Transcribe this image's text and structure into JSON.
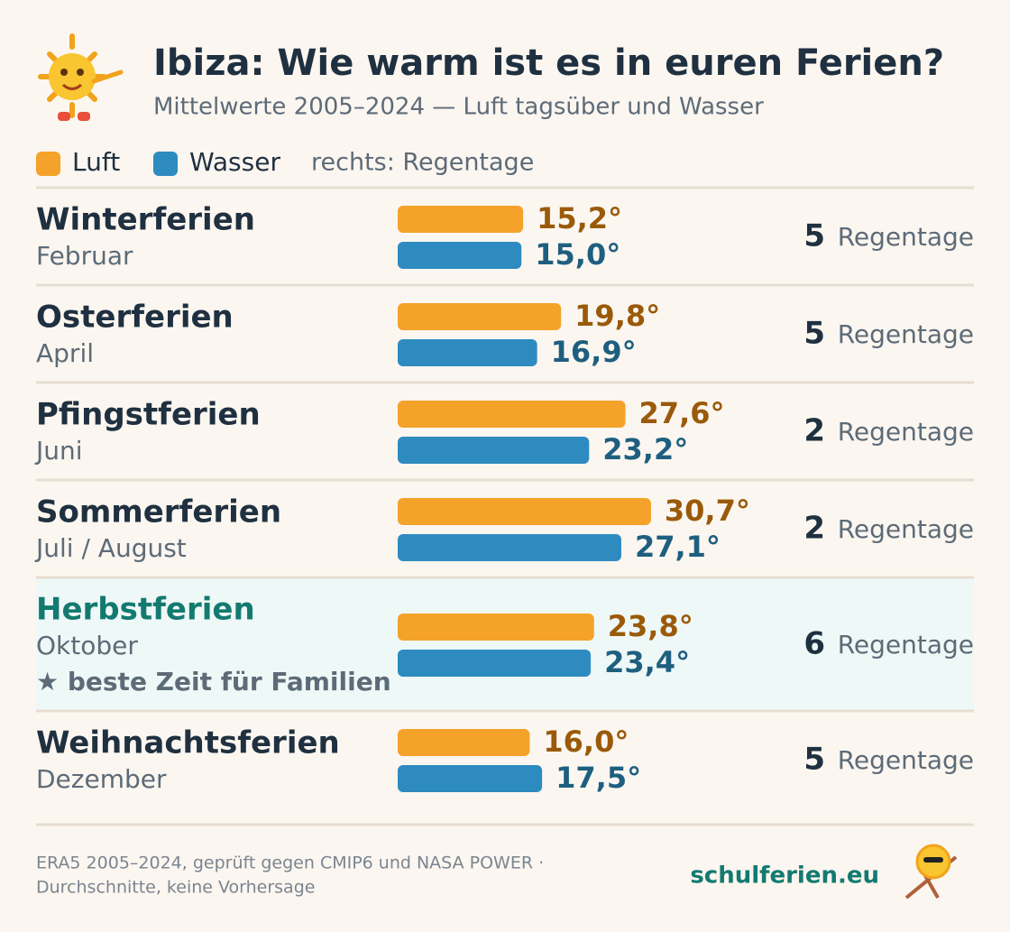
{
  "chart_data": {
    "type": "hbar",
    "title": "Ibiza: Wie warm ist es in euren Ferien?",
    "subtitle": "Mittelwerte 2005–2024 — Luft tagsüber und Wasser",
    "rain_note": "rechts: Regentage",
    "categories": [
      "Winterferien",
      "Osterferien",
      "Pfingstferien",
      "Sommerferien",
      "Herbstferien",
      "Weihnachtsferien"
    ],
    "category_sublabels": [
      "Februar",
      "April",
      "Juni",
      "Juli / August",
      "Oktober",
      "Dezember"
    ],
    "series": [
      {
        "name": "Luft",
        "color": "#f4a22a",
        "label_color": "#9a5a0a",
        "values": [
          15.2,
          19.8,
          27.6,
          30.7,
          23.8,
          16.0
        ],
        "value_labels": [
          "15,2°",
          "19,8°",
          "27,6°",
          "30,7°",
          "23,8°",
          "16,0°"
        ]
      },
      {
        "name": "Wasser",
        "color": "#2e8bc0",
        "label_color": "#1e5f80",
        "values": [
          15.0,
          16.9,
          23.2,
          27.1,
          23.4,
          17.5
        ],
        "value_labels": [
          "15,0°",
          "16,9°",
          "23,2°",
          "27,1°",
          "23,4°",
          "17,5°"
        ]
      }
    ],
    "rain_days": [
      5,
      5,
      2,
      2,
      6,
      5
    ],
    "rain_unit": "Regentage",
    "highlight_index": 4,
    "highlight_note": "beste Zeit für Familien",
    "footer": [
      "ERA5 2005–2024, geprüft gegen CMIP6 und NASA POWER ·",
      "Durchschnitte, keine Vorhersage"
    ],
    "brand": "schulferien.eu"
  }
}
